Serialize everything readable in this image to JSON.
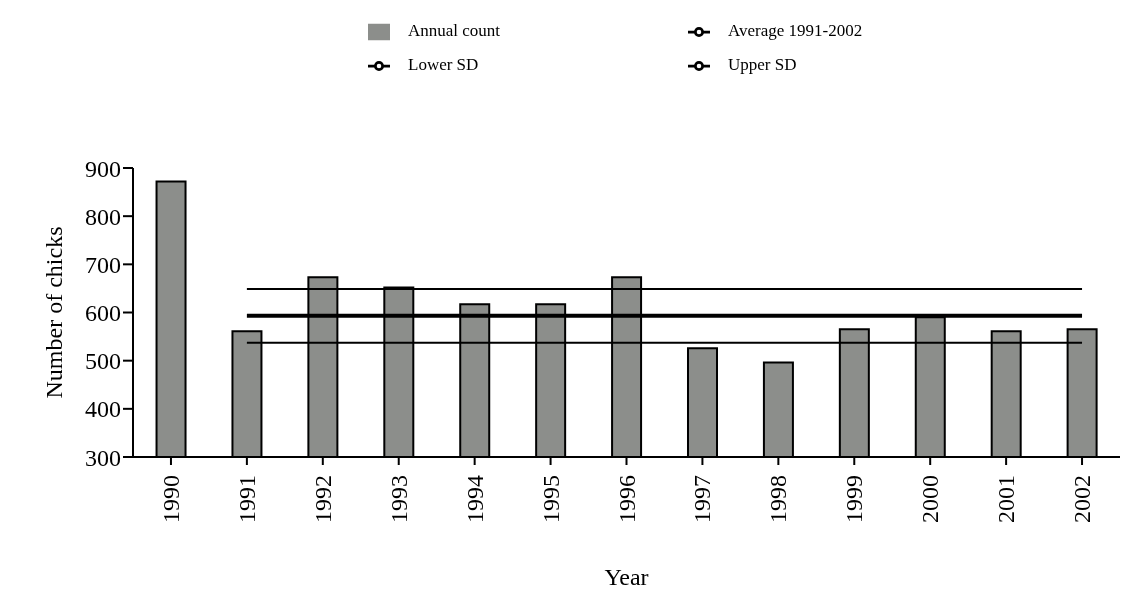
{
  "chart_data": {
    "type": "bar",
    "xlabel": "Year",
    "ylabel": "Number of chicks",
    "categories": [
      "1990",
      "1991",
      "1992",
      "1993",
      "1994",
      "1995",
      "1996",
      "1997",
      "1998",
      "1999",
      "2000",
      "2001",
      "2002"
    ],
    "series": [
      {
        "name": "Annual count",
        "color": "#8c8e8b",
        "values": [
          872,
          561,
          673,
          652,
          617,
          617,
          673,
          526,
          496,
          565,
          590,
          561,
          565
        ]
      },
      {
        "name": "Average 1991-2002",
        "type": "line",
        "color": "#000000",
        "values": [
          null,
          593,
          593,
          593,
          593,
          593,
          593,
          593,
          593,
          593,
          593,
          593,
          593
        ]
      },
      {
        "name": "Lower SD",
        "type": "line",
        "color": "#000000",
        "values": [
          null,
          537,
          537,
          537,
          537,
          537,
          537,
          537,
          537,
          537,
          537,
          537,
          537
        ]
      },
      {
        "name": "Upper SD",
        "type": "line",
        "color": "#000000",
        "values": [
          null,
          649,
          649,
          649,
          649,
          649,
          649,
          649,
          649,
          649,
          649,
          649,
          649
        ]
      }
    ],
    "ylim": [
      300,
      900
    ],
    "yticks": [
      300,
      400,
      500,
      600,
      700,
      800,
      900
    ],
    "grid": false,
    "legend": "top",
    "marker": "none",
    "line_style": "solid"
  }
}
